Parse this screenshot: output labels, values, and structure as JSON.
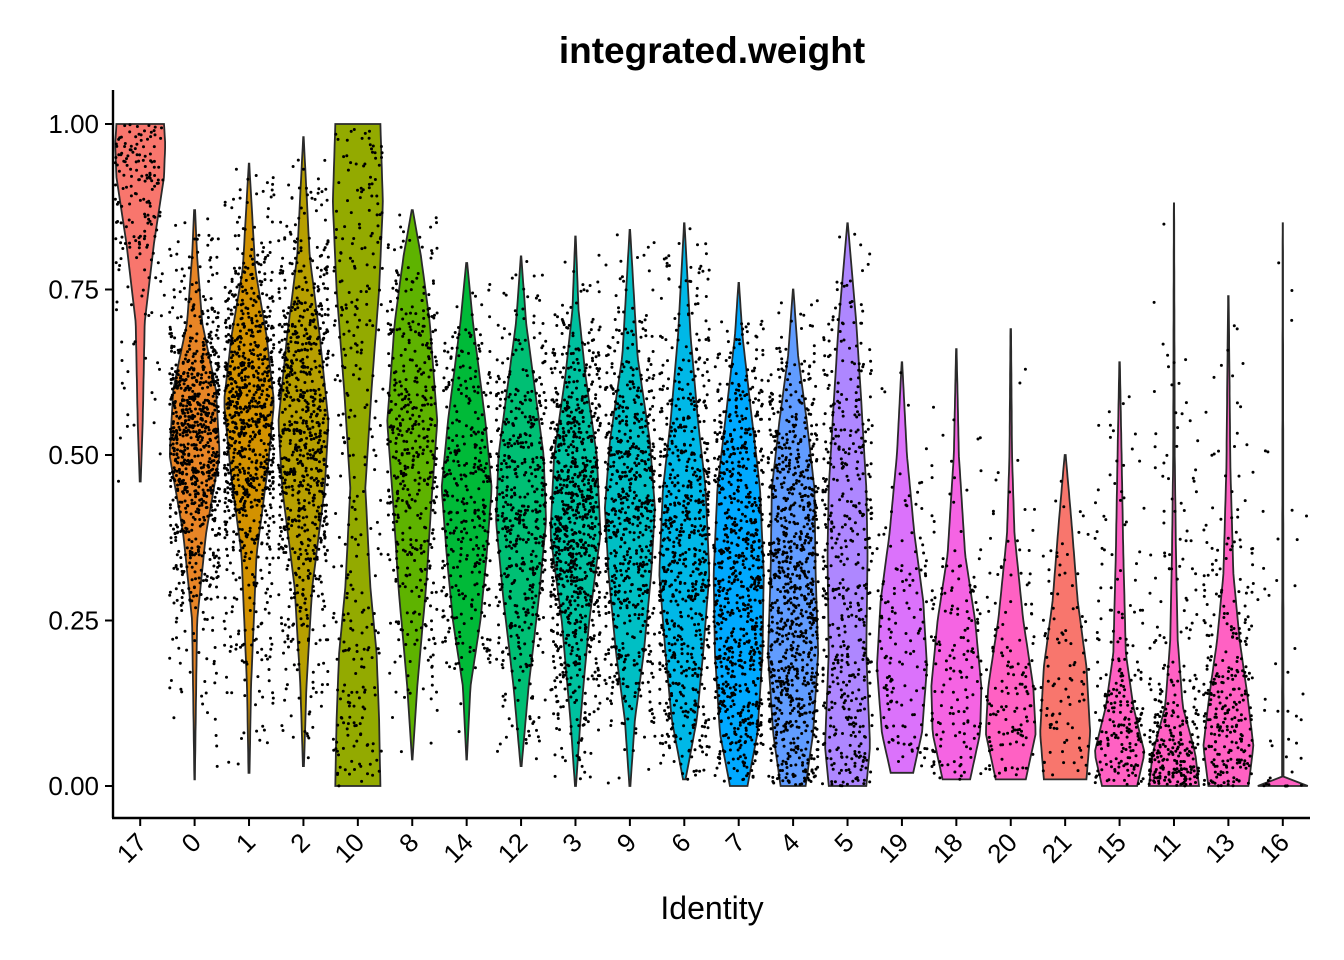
{
  "chart_data": {
    "type": "violin",
    "title": "integrated.weight",
    "xlabel": "Identity",
    "ylabel": "",
    "ylim": [
      -0.05,
      1.05
    ],
    "yticks": [
      0,
      0.25,
      0.5,
      0.75,
      1.0
    ],
    "ytick_labels": [
      "0.00",
      "0.25",
      "0.50",
      "0.75",
      "1.00"
    ],
    "grid": false,
    "legend": "none",
    "series": [
      {
        "name": "17",
        "color": "#F8766D",
        "min": 0.46,
        "max": 1.0,
        "median": 0.9,
        "profile": [
          [
            0.46,
            0.02
          ],
          [
            0.55,
            0.1
          ],
          [
            0.7,
            0.18
          ],
          [
            0.82,
            0.55
          ],
          [
            0.92,
            0.95
          ],
          [
            0.97,
            1.0
          ],
          [
            1.0,
            0.95
          ]
        ],
        "points": 180
      },
      {
        "name": "0",
        "color": "#E88526",
        "min": 0.01,
        "max": 0.87,
        "median": 0.53,
        "profile": [
          [
            0.01,
            0.01
          ],
          [
            0.25,
            0.1
          ],
          [
            0.38,
            0.45
          ],
          [
            0.5,
            1.0
          ],
          [
            0.6,
            0.85
          ],
          [
            0.7,
            0.3
          ],
          [
            0.8,
            0.1
          ],
          [
            0.87,
            0.02
          ]
        ],
        "points": 900
      },
      {
        "name": "1",
        "color": "#D39200",
        "min": 0.02,
        "max": 0.94,
        "median": 0.57,
        "profile": [
          [
            0.02,
            0.02
          ],
          [
            0.15,
            0.08
          ],
          [
            0.35,
            0.3
          ],
          [
            0.48,
            0.75
          ],
          [
            0.58,
            1.0
          ],
          [
            0.68,
            0.7
          ],
          [
            0.78,
            0.25
          ],
          [
            0.94,
            0.01
          ]
        ],
        "points": 900
      },
      {
        "name": "2",
        "color": "#B79F00",
        "min": 0.03,
        "max": 0.98,
        "median": 0.54,
        "profile": [
          [
            0.03,
            0.02
          ],
          [
            0.15,
            0.12
          ],
          [
            0.3,
            0.35
          ],
          [
            0.45,
            0.85
          ],
          [
            0.55,
            1.0
          ],
          [
            0.68,
            0.65
          ],
          [
            0.8,
            0.25
          ],
          [
            0.98,
            0.01
          ]
        ],
        "points": 800
      },
      {
        "name": "10",
        "color": "#93AA00",
        "min": 0.0,
        "max": 1.0,
        "median": 0.5,
        "profile": [
          [
            0.0,
            0.9
          ],
          [
            0.1,
            0.85
          ],
          [
            0.2,
            0.75
          ],
          [
            0.3,
            0.5
          ],
          [
            0.45,
            0.3
          ],
          [
            0.6,
            0.55
          ],
          [
            0.75,
            0.85
          ],
          [
            0.88,
            1.0
          ],
          [
            1.0,
            0.9
          ]
        ],
        "points": 300
      },
      {
        "name": "8",
        "color": "#5EB300",
        "min": 0.04,
        "max": 0.87,
        "median": 0.48,
        "profile": [
          [
            0.04,
            0.01
          ],
          [
            0.15,
            0.2
          ],
          [
            0.3,
            0.55
          ],
          [
            0.42,
            0.75
          ],
          [
            0.55,
            1.0
          ],
          [
            0.7,
            0.7
          ],
          [
            0.8,
            0.35
          ],
          [
            0.87,
            0.02
          ]
        ],
        "points": 450
      },
      {
        "name": "14",
        "color": "#00BA38",
        "min": 0.04,
        "max": 0.79,
        "median": 0.42,
        "profile": [
          [
            0.04,
            0.01
          ],
          [
            0.15,
            0.15
          ],
          [
            0.25,
            0.55
          ],
          [
            0.35,
            0.8
          ],
          [
            0.45,
            1.0
          ],
          [
            0.55,
            0.75
          ],
          [
            0.7,
            0.25
          ],
          [
            0.79,
            0.02
          ]
        ],
        "points": 350
      },
      {
        "name": "12",
        "color": "#00BF74",
        "min": 0.03,
        "max": 0.8,
        "median": 0.4,
        "profile": [
          [
            0.03,
            0.02
          ],
          [
            0.15,
            0.3
          ],
          [
            0.28,
            0.7
          ],
          [
            0.4,
            1.0
          ],
          [
            0.5,
            0.9
          ],
          [
            0.6,
            0.55
          ],
          [
            0.7,
            0.2
          ],
          [
            0.8,
            0.01
          ]
        ],
        "points": 500
      },
      {
        "name": "3",
        "color": "#00C19F",
        "min": 0.0,
        "max": 0.83,
        "median": 0.38,
        "profile": [
          [
            0.0,
            0.02
          ],
          [
            0.1,
            0.2
          ],
          [
            0.25,
            0.55
          ],
          [
            0.38,
            1.0
          ],
          [
            0.5,
            0.85
          ],
          [
            0.62,
            0.4
          ],
          [
            0.72,
            0.12
          ],
          [
            0.83,
            0.01
          ]
        ],
        "points": 900
      },
      {
        "name": "9",
        "color": "#00BFC4",
        "min": 0.0,
        "max": 0.84,
        "median": 0.37,
        "profile": [
          [
            0.0,
            0.02
          ],
          [
            0.1,
            0.2
          ],
          [
            0.2,
            0.55
          ],
          [
            0.32,
            0.85
          ],
          [
            0.42,
            1.0
          ],
          [
            0.52,
            0.8
          ],
          [
            0.65,
            0.3
          ],
          [
            0.84,
            0.01
          ]
        ],
        "points": 650
      },
      {
        "name": "6",
        "color": "#00B8E7",
        "min": 0.01,
        "max": 0.85,
        "median": 0.36,
        "profile": [
          [
            0.01,
            0.05
          ],
          [
            0.1,
            0.5
          ],
          [
            0.2,
            0.75
          ],
          [
            0.32,
            1.0
          ],
          [
            0.45,
            0.85
          ],
          [
            0.55,
            0.55
          ],
          [
            0.68,
            0.25
          ],
          [
            0.85,
            0.01
          ]
        ],
        "points": 700
      },
      {
        "name": "7",
        "color": "#00A9FF",
        "min": 0.0,
        "max": 0.76,
        "median": 0.34,
        "profile": [
          [
            0.0,
            0.35
          ],
          [
            0.08,
            0.75
          ],
          [
            0.2,
            0.95
          ],
          [
            0.32,
            1.0
          ],
          [
            0.45,
            0.85
          ],
          [
            0.58,
            0.45
          ],
          [
            0.68,
            0.15
          ],
          [
            0.76,
            0.01
          ]
        ],
        "points": 800
      },
      {
        "name": "4",
        "color": "#619CFF",
        "min": 0.0,
        "max": 0.75,
        "median": 0.32,
        "profile": [
          [
            0.0,
            0.5
          ],
          [
            0.08,
            0.8
          ],
          [
            0.2,
            1.0
          ],
          [
            0.32,
            0.9
          ],
          [
            0.45,
            0.85
          ],
          [
            0.55,
            0.55
          ],
          [
            0.65,
            0.2
          ],
          [
            0.75,
            0.01
          ]
        ],
        "points": 900
      },
      {
        "name": "5",
        "color": "#AE87FF",
        "min": 0.0,
        "max": 0.85,
        "median": 0.34,
        "profile": [
          [
            0.0,
            0.75
          ],
          [
            0.06,
            0.9
          ],
          [
            0.2,
            0.75
          ],
          [
            0.35,
            0.8
          ],
          [
            0.45,
            0.75
          ],
          [
            0.58,
            0.55
          ],
          [
            0.7,
            0.35
          ],
          [
            0.85,
            0.01
          ]
        ],
        "points": 500
      },
      {
        "name": "19",
        "color": "#DB72FB",
        "min": 0.02,
        "max": 0.64,
        "median": 0.2,
        "profile": [
          [
            0.02,
            0.45
          ],
          [
            0.08,
            0.8
          ],
          [
            0.18,
            1.0
          ],
          [
            0.28,
            0.85
          ],
          [
            0.38,
            0.5
          ],
          [
            0.5,
            0.2
          ],
          [
            0.64,
            0.01
          ]
        ],
        "points": 150
      },
      {
        "name": "18",
        "color": "#F564E3",
        "min": 0.01,
        "max": 0.66,
        "median": 0.17,
        "profile": [
          [
            0.01,
            0.55
          ],
          [
            0.08,
            0.95
          ],
          [
            0.15,
            1.0
          ],
          [
            0.25,
            0.75
          ],
          [
            0.35,
            0.35
          ],
          [
            0.5,
            0.1
          ],
          [
            0.66,
            0.01
          ]
        ],
        "points": 160
      },
      {
        "name": "20",
        "color": "#FF61C3",
        "min": 0.01,
        "max": 0.69,
        "median": 0.13,
        "profile": [
          [
            0.01,
            0.6
          ],
          [
            0.08,
            1.0
          ],
          [
            0.15,
            0.9
          ],
          [
            0.25,
            0.5
          ],
          [
            0.38,
            0.15
          ],
          [
            0.5,
            0.05
          ],
          [
            0.69,
            0.01
          ]
        ],
        "points": 140
      },
      {
        "name": "21",
        "color": "#F8766D",
        "min": 0.01,
        "max": 0.5,
        "median": 0.15,
        "profile": [
          [
            0.01,
            0.85
          ],
          [
            0.08,
            1.0
          ],
          [
            0.18,
            0.85
          ],
          [
            0.28,
            0.5
          ],
          [
            0.4,
            0.25
          ],
          [
            0.5,
            0.02
          ]
        ],
        "points": 100
      },
      {
        "name": "15",
        "color": "#FF61C3",
        "min": 0.0,
        "max": 0.64,
        "median": 0.08,
        "profile": [
          [
            0.0,
            0.7
          ],
          [
            0.05,
            1.0
          ],
          [
            0.12,
            0.55
          ],
          [
            0.2,
            0.25
          ],
          [
            0.35,
            0.15
          ],
          [
            0.5,
            0.08
          ],
          [
            0.64,
            0.01
          ]
        ],
        "points": 220
      },
      {
        "name": "11",
        "color": "#FF61C3",
        "min": 0.0,
        "max": 0.88,
        "median": 0.06,
        "profile": [
          [
            0.0,
            1.0
          ],
          [
            0.05,
            0.85
          ],
          [
            0.12,
            0.35
          ],
          [
            0.22,
            0.15
          ],
          [
            0.35,
            0.08
          ],
          [
            0.5,
            0.03
          ],
          [
            0.88,
            0.005
          ]
        ],
        "points": 300
      },
      {
        "name": "13",
        "color": "#FF61C3",
        "min": 0.0,
        "max": 0.74,
        "median": 0.1,
        "profile": [
          [
            0.0,
            0.8
          ],
          [
            0.06,
            1.0
          ],
          [
            0.14,
            0.75
          ],
          [
            0.22,
            0.45
          ],
          [
            0.32,
            0.2
          ],
          [
            0.48,
            0.08
          ],
          [
            0.74,
            0.01
          ]
        ],
        "points": 300
      },
      {
        "name": "16",
        "color": "#FF61C3",
        "min": 0.0,
        "max": 0.85,
        "median": 0.0,
        "profile": [
          [
            0.0,
            1.0
          ],
          [
            0.005,
            0.03
          ],
          [
            0.85,
            0.005
          ]
        ],
        "points": 60
      }
    ]
  }
}
